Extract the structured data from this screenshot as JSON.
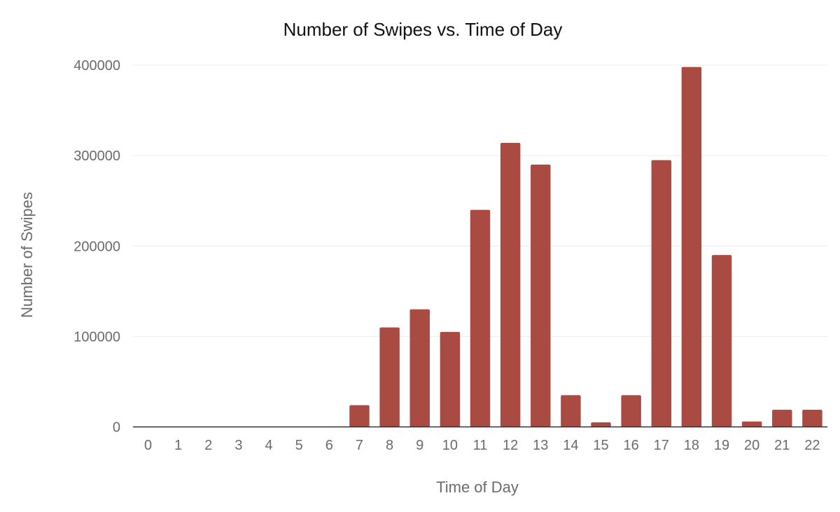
{
  "chart_data": {
    "type": "bar",
    "title": "Number of Swipes vs. Time of Day",
    "xlabel": "Time of Day",
    "ylabel": "Number of Swipes",
    "categories": [
      "0",
      "1",
      "2",
      "3",
      "4",
      "5",
      "6",
      "7",
      "8",
      "9",
      "10",
      "11",
      "12",
      "13",
      "14",
      "15",
      "16",
      "17",
      "18",
      "19",
      "20",
      "21",
      "22"
    ],
    "series": [
      {
        "name": "Number of Swipes",
        "values": [
          0,
          0,
          0,
          0,
          0,
          0,
          0,
          24000,
          110000,
          130000,
          105000,
          240000,
          314000,
          290000,
          35000,
          5000,
          35000,
          295000,
          398000,
          190000,
          6000,
          19000,
          19000
        ]
      }
    ],
    "ylim": [
      0,
      400000
    ],
    "yticks": [
      0,
      100000,
      200000,
      300000,
      400000
    ],
    "ytick_labels": [
      "0",
      "100000",
      "200000",
      "300000",
      "400000"
    ],
    "grid": true,
    "legend": "none",
    "bar_color": "#a94a43"
  }
}
